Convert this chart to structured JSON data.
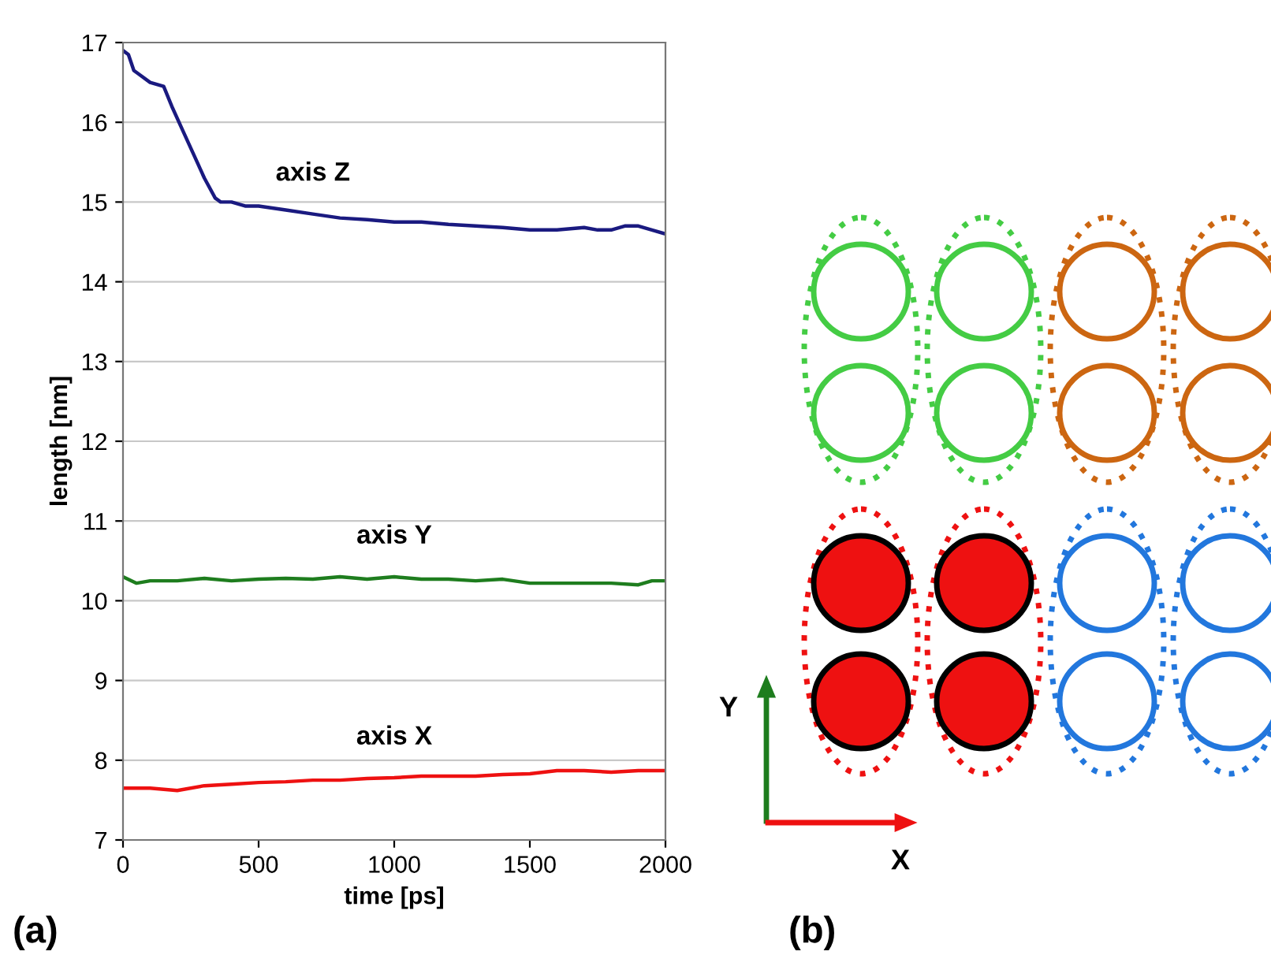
{
  "chart_data": [
    {
      "type": "line",
      "xlabel": "time [ps]",
      "ylabel": "length [nm]",
      "xlim": [
        0,
        2000
      ],
      "xticks": [
        0,
        500,
        1000,
        1500,
        2000
      ],
      "ylim": [
        7,
        17
      ],
      "yticks": [
        7,
        8,
        9,
        10,
        11,
        12,
        13,
        14,
        15,
        16,
        17
      ],
      "grid": "y",
      "line_style": "solid",
      "marker": "none",
      "annotations": [
        "(a)"
      ],
      "series": [
        {
          "name": "axis Z",
          "color": "#1a1a80",
          "x": [
            0,
            20,
            40,
            60,
            100,
            150,
            180,
            220,
            260,
            300,
            340,
            360,
            400,
            450,
            500,
            600,
            700,
            800,
            900,
            1000,
            1100,
            1200,
            1300,
            1400,
            1500,
            1600,
            1700,
            1750,
            1800,
            1850,
            1900,
            1950,
            2000
          ],
          "values": [
            16.9,
            16.85,
            16.65,
            16.6,
            16.5,
            16.45,
            16.2,
            15.9,
            15.6,
            15.3,
            15.05,
            15.0,
            15.0,
            14.95,
            14.95,
            14.9,
            14.85,
            14.8,
            14.78,
            14.75,
            14.75,
            14.72,
            14.7,
            14.68,
            14.65,
            14.65,
            14.68,
            14.65,
            14.65,
            14.7,
            14.7,
            14.65,
            14.6
          ]
        },
        {
          "name": "axis Y",
          "color": "#1e7d1e",
          "x": [
            0,
            50,
            100,
            200,
            300,
            400,
            500,
            600,
            700,
            800,
            900,
            1000,
            1100,
            1200,
            1300,
            1400,
            1500,
            1600,
            1700,
            1800,
            1900,
            1950,
            2000
          ],
          "values": [
            10.3,
            10.22,
            10.25,
            10.25,
            10.28,
            10.25,
            10.27,
            10.28,
            10.27,
            10.3,
            10.27,
            10.3,
            10.27,
            10.27,
            10.25,
            10.27,
            10.22,
            10.22,
            10.22,
            10.22,
            10.2,
            10.25,
            10.25
          ]
        },
        {
          "name": "axis X",
          "color": "#ee1111",
          "x": [
            0,
            100,
            200,
            300,
            400,
            500,
            600,
            700,
            800,
            900,
            1000,
            1100,
            1200,
            1300,
            1400,
            1500,
            1600,
            1700,
            1800,
            1900,
            2000
          ],
          "values": [
            7.65,
            7.65,
            7.62,
            7.68,
            7.7,
            7.72,
            7.73,
            7.75,
            7.75,
            7.77,
            7.78,
            7.8,
            7.8,
            7.8,
            7.82,
            7.83,
            7.87,
            7.87,
            7.85,
            7.87,
            7.87
          ]
        }
      ]
    },
    {
      "type": "other",
      "annotations": [
        "(b)",
        "Y",
        "X"
      ]
    }
  ]
}
